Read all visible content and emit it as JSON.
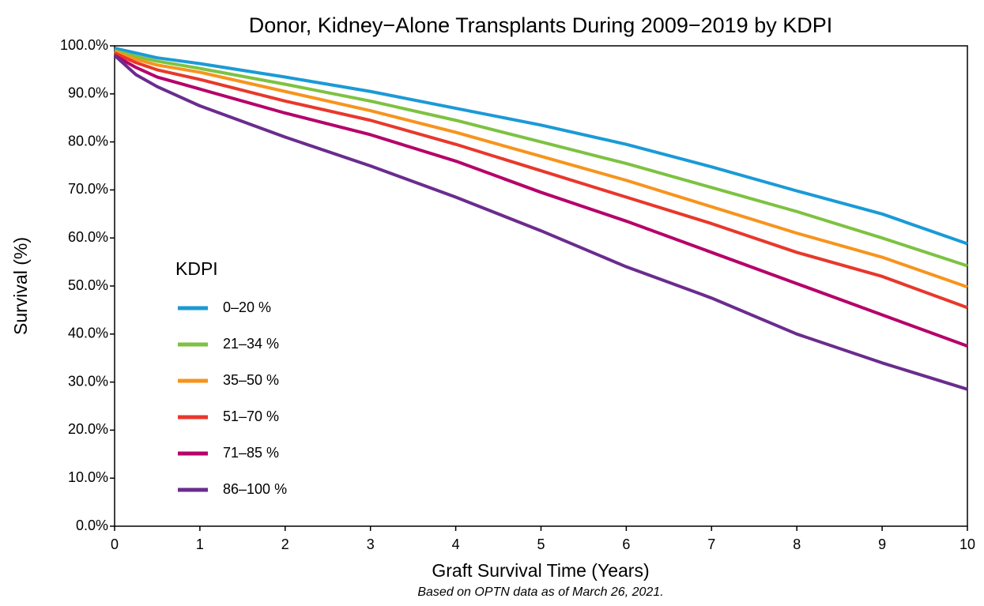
{
  "chart_data": {
    "type": "line",
    "title": "Donor, Kidney−Alone Transplants During 2009−2019 by KDPI",
    "x_label": "Graft Survival Time (Years)",
    "y_label": "Survival (%)",
    "caption": "Based on OPTN data as of March 26, 2021.",
    "legend_title": "KDPI",
    "legend_position": "left",
    "x": [
      0,
      0.25,
      0.5,
      1,
      2,
      3,
      4,
      5,
      6,
      7,
      8,
      9,
      10
    ],
    "series": [
      {
        "name": "0–20 %",
        "color": "#1b9ad6",
        "values": [
          99.5,
          98.5,
          97.5,
          96.3,
          93.5,
          90.5,
          87,
          83.5,
          79.5,
          74.8,
          69.8,
          65,
          58.8
        ]
      },
      {
        "name": "21–34 %",
        "color": "#7dc242",
        "values": [
          99,
          97.8,
          96.8,
          95.3,
          92,
          88.5,
          84.5,
          80,
          75.5,
          70.5,
          65.5,
          60,
          54.2
        ]
      },
      {
        "name": "35–50 %",
        "color": "#f7941d",
        "values": [
          98.8,
          97.2,
          96,
          94.5,
          90.5,
          86.5,
          82,
          77,
          72,
          66.5,
          61,
          56,
          49.8
        ]
      },
      {
        "name": "51–70 %",
        "color": "#e8382b",
        "values": [
          98.5,
          96.5,
          95,
          93,
          88.5,
          84.5,
          79.5,
          74,
          68.5,
          63,
          57,
          52,
          45.5
        ]
      },
      {
        "name": "71–85 %",
        "color": "#b5006a",
        "values": [
          98,
          95.5,
          93.5,
          91,
          86,
          81.5,
          76,
          69.5,
          63.5,
          57,
          50.5,
          44,
          37.5
        ]
      },
      {
        "name": "86–100 %",
        "color": "#6a2c8e",
        "values": [
          98,
          94,
          91.5,
          87.5,
          81,
          75,
          68.5,
          61.5,
          54,
          47.5,
          40,
          34,
          28.5
        ]
      }
    ],
    "xlim": [
      0,
      10
    ],
    "xticks": [
      0,
      1,
      2,
      3,
      4,
      5,
      6,
      7,
      8,
      9,
      10
    ],
    "ylim": [
      0,
      100
    ],
    "yticks": [
      {
        "value": 0,
        "label": "0.0%"
      },
      {
        "value": 10,
        "label": "10.0%"
      },
      {
        "value": 20,
        "label": "20.0%"
      },
      {
        "value": 30,
        "label": "30.0%"
      },
      {
        "value": 40,
        "label": "40.0%"
      },
      {
        "value": 50,
        "label": "50.0%"
      },
      {
        "value": 60,
        "label": "60.0%"
      },
      {
        "value": 70,
        "label": "70.0%"
      },
      {
        "value": 80,
        "label": "80.0%"
      },
      {
        "value": 90,
        "label": "90.0%"
      },
      {
        "value": 100,
        "label": "100.0%"
      }
    ]
  }
}
